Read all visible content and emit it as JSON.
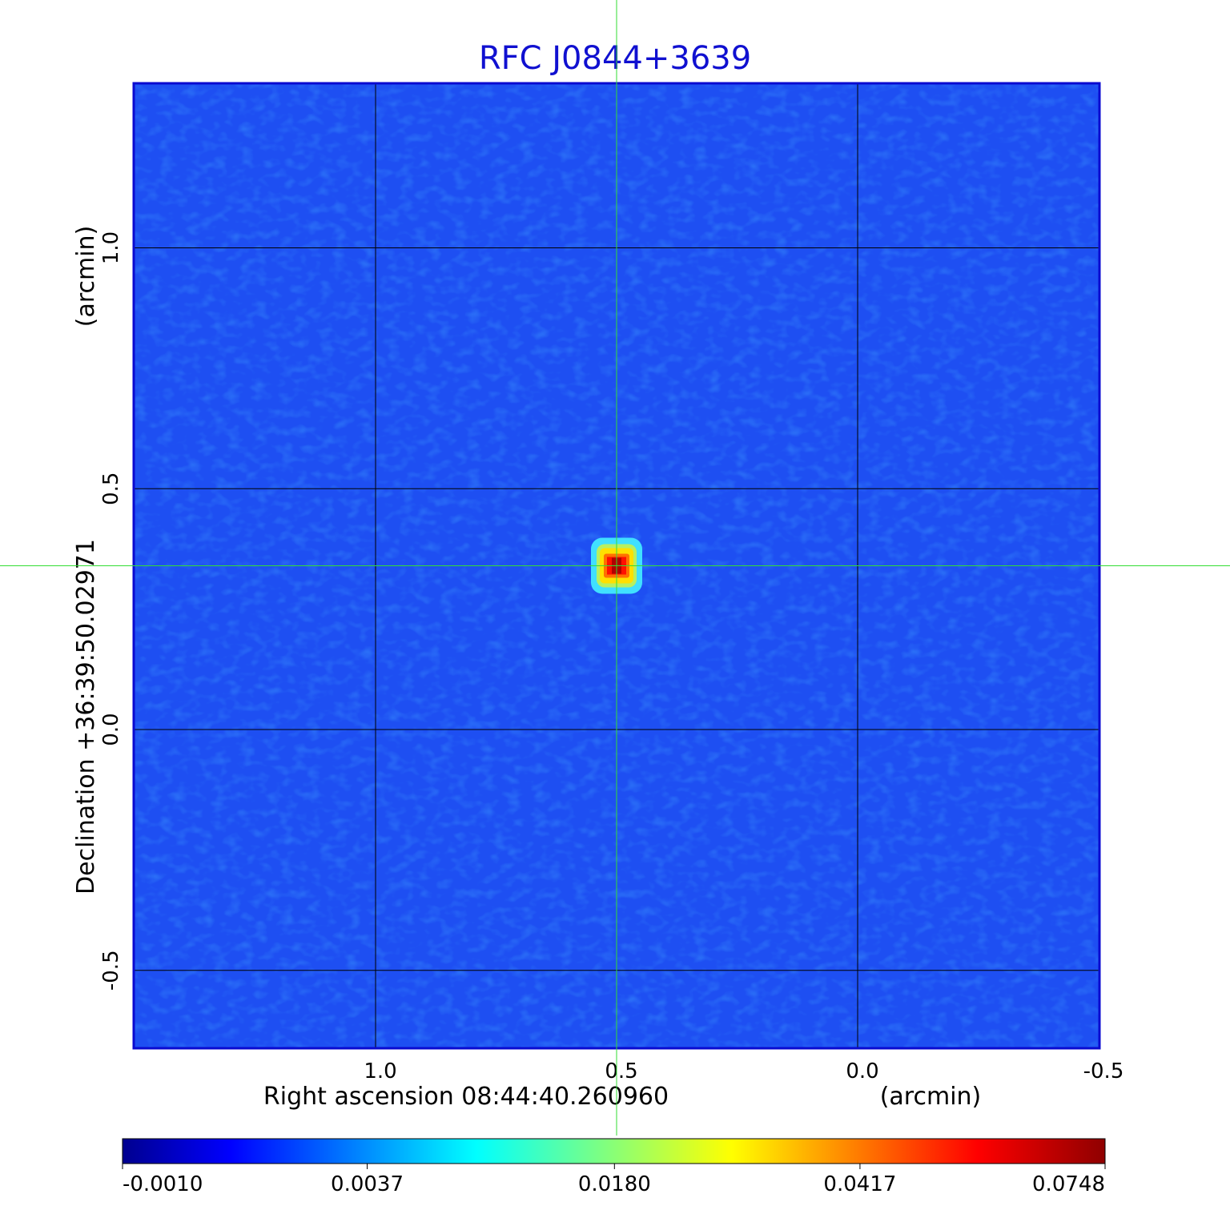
{
  "chart_data": {
    "type": "image",
    "title": "RFC J0844+3639",
    "xlabel": "Right ascension  08:44:40.260960",
    "xunit": "(arcmin)",
    "ylabel": "Declination  +36:39:50.02971",
    "yunit": "(arcmin)",
    "xlim": [
      1.5,
      -0.5
    ],
    "ylim": [
      -0.66,
      1.34
    ],
    "xticks": [
      {
        "value": 1,
        "label": "1.0"
      },
      0.5,
      {
        "value": 0,
        "label": "0.0"
      },
      -0.5
    ],
    "yticks": [
      -0.5,
      {
        "value": 0,
        "label": "0.0"
      },
      0.5,
      {
        "value": 1,
        "label": "1.0"
      }
    ],
    "grid": true,
    "crosshair": {
      "x": 0.5,
      "y": 0.34,
      "color": "#33dd33"
    },
    "colorbar": {
      "colormap": "jet",
      "scale": "sqrt",
      "clim": [
        -0.001,
        0.0748
      ],
      "ticks": [
        {
          "value": -0.001,
          "label": "-0.0010"
        },
        {
          "value": 0.0037,
          "label": "0.0037"
        },
        {
          "value": 0.018,
          "label": "0.0180"
        },
        {
          "value": 0.0417,
          "label": "0.0417"
        },
        {
          "value": 0.0748,
          "label": "0.0748"
        }
      ]
    }
  }
}
